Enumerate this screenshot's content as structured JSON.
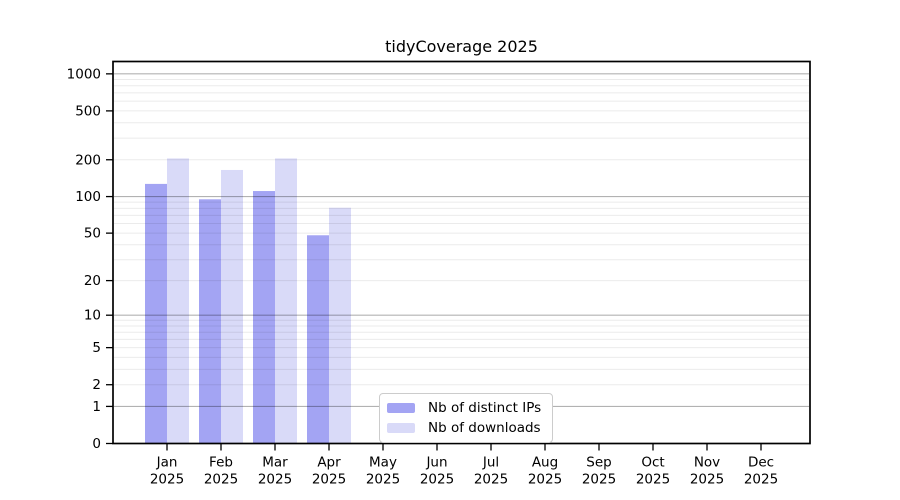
{
  "title": "tidyCoverage 2025",
  "legend": {
    "items": [
      {
        "label": "Nb of distinct IPs",
        "color": "#a3a4f3"
      },
      {
        "label": "Nb of downloads",
        "color": "#d9daf8"
      }
    ]
  },
  "chart_data": {
    "type": "bar",
    "title": "tidyCoverage 2025",
    "categories": [
      "Jan 2025",
      "Feb 2025",
      "Mar 2025",
      "Apr 2025",
      "May 2025",
      "Jun 2025",
      "Jul 2025",
      "Aug 2025",
      "Sep 2025",
      "Oct 2025",
      "Nov 2025",
      "Dec 2025"
    ],
    "series": [
      {
        "name": "Nb of distinct IPs",
        "color": "#a3a4f3",
        "values": [
          127,
          95,
          111,
          48,
          null,
          null,
          null,
          null,
          null,
          null,
          null,
          null
        ]
      },
      {
        "name": "Nb of downloads",
        "color": "#d9daf8",
        "values": [
          205,
          165,
          205,
          81,
          null,
          null,
          null,
          null,
          null,
          null,
          null,
          null
        ]
      }
    ],
    "xlabel": "",
    "ylabel": "",
    "yscale": "log1p",
    "ylim": [
      0,
      1260
    ],
    "yticks": [
      0,
      1,
      2,
      5,
      10,
      20,
      50,
      100,
      200,
      500,
      1000
    ],
    "major_gridlines": [
      1,
      10,
      100,
      1000
    ],
    "minor_gridlines": [
      2,
      3,
      4,
      5,
      6,
      7,
      8,
      9,
      20,
      30,
      40,
      50,
      60,
      70,
      80,
      90,
      200,
      300,
      400,
      500,
      600,
      700,
      800,
      900
    ],
    "grid": true,
    "legend_position": "lower center"
  },
  "colors": {
    "axis": "#000000",
    "major_grid_rgba": "rgba(0,0,0,0.30)",
    "minor_grid_rgba": "rgba(0,0,0,0.08)",
    "text": "#000000",
    "legend_border": "#cccccc",
    "background": "#ffffff"
  }
}
